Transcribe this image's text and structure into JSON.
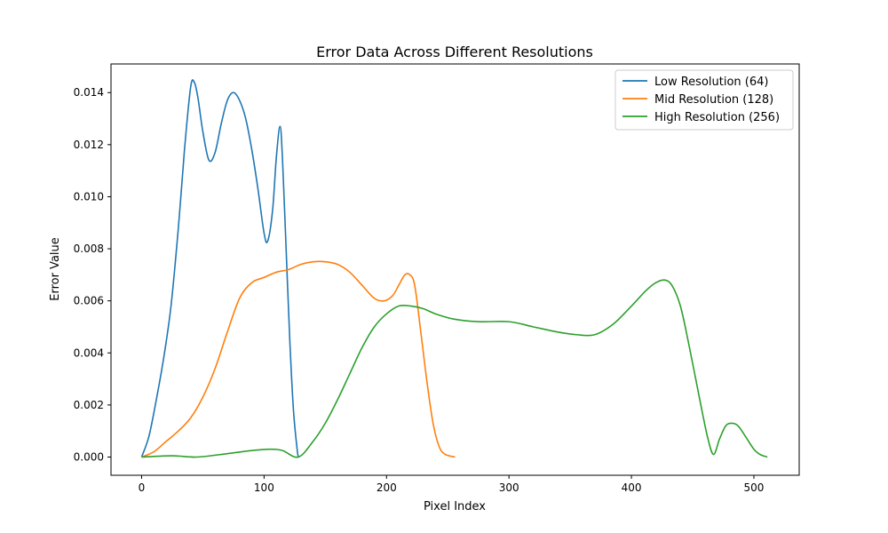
{
  "chart_data": {
    "type": "line",
    "title": "Error Data Across Different Resolutions",
    "xlabel": "Pixel Index",
    "ylabel": "Error Value",
    "xlim": [
      -25,
      537
    ],
    "ylim": [
      -0.0007,
      0.0151
    ],
    "xticks": [
      0,
      100,
      200,
      300,
      400,
      500
    ],
    "xtick_labels": [
      "0",
      "100",
      "200",
      "300",
      "400",
      "500"
    ],
    "yticks": [
      0.0,
      0.002,
      0.004,
      0.006,
      0.008,
      0.01,
      0.012,
      0.014
    ],
    "ytick_labels": [
      "0.000",
      "0.002",
      "0.004",
      "0.006",
      "0.008",
      "0.010",
      "0.012",
      "0.014"
    ],
    "grid": false,
    "legend_position": "top-right",
    "series": [
      {
        "name": "Low Resolution (64)",
        "color": "#1f77b4",
        "points": [
          [
            0,
            0.0
          ],
          [
            6,
            0.0008
          ],
          [
            12,
            0.0022
          ],
          [
            18,
            0.0038
          ],
          [
            24,
            0.0058
          ],
          [
            30,
            0.0088
          ],
          [
            35,
            0.0118
          ],
          [
            40,
            0.0142
          ],
          [
            43,
            0.0144
          ],
          [
            46,
            0.0138
          ],
          [
            50,
            0.0125
          ],
          [
            55,
            0.0114
          ],
          [
            60,
            0.0117
          ],
          [
            65,
            0.0128
          ],
          [
            70,
            0.0137
          ],
          [
            75,
            0.014
          ],
          [
            80,
            0.0137
          ],
          [
            85,
            0.013
          ],
          [
            90,
            0.0118
          ],
          [
            95,
            0.0103
          ],
          [
            100,
            0.0086
          ],
          [
            103,
            0.0083
          ],
          [
            107,
            0.0095
          ],
          [
            110,
            0.0115
          ],
          [
            113,
            0.0127
          ],
          [
            115,
            0.0115
          ],
          [
            118,
            0.008
          ],
          [
            121,
            0.0045
          ],
          [
            124,
            0.0018
          ],
          [
            127,
            0.0003
          ],
          [
            128,
            0.0
          ]
        ]
      },
      {
        "name": "Mid Resolution (128)",
        "color": "#ff7f0e",
        "points": [
          [
            0,
            0.0
          ],
          [
            10,
            0.0002
          ],
          [
            20,
            0.0006
          ],
          [
            30,
            0.001
          ],
          [
            40,
            0.0015
          ],
          [
            50,
            0.0023
          ],
          [
            60,
            0.0034
          ],
          [
            70,
            0.0048
          ],
          [
            80,
            0.0061
          ],
          [
            90,
            0.0067
          ],
          [
            100,
            0.0069
          ],
          [
            110,
            0.0071
          ],
          [
            120,
            0.0072
          ],
          [
            130,
            0.0074
          ],
          [
            140,
            0.0075
          ],
          [
            150,
            0.0075
          ],
          [
            160,
            0.0074
          ],
          [
            170,
            0.0071
          ],
          [
            180,
            0.0066
          ],
          [
            190,
            0.0061
          ],
          [
            198,
            0.006
          ],
          [
            205,
            0.0062
          ],
          [
            210,
            0.0066
          ],
          [
            215,
            0.007
          ],
          [
            219,
            0.007
          ],
          [
            223,
            0.0066
          ],
          [
            228,
            0.0048
          ],
          [
            233,
            0.0029
          ],
          [
            238,
            0.0013
          ],
          [
            243,
            0.0004
          ],
          [
            248,
            0.0001
          ],
          [
            256,
            0.0
          ]
        ]
      },
      {
        "name": "High Resolution (256)",
        "color": "#2ca02c",
        "points": [
          [
            0,
            0.0
          ],
          [
            25,
            5e-05
          ],
          [
            45,
            0.0
          ],
          [
            70,
            0.00013
          ],
          [
            90,
            0.00025
          ],
          [
            105,
            0.0003
          ],
          [
            115,
            0.00025
          ],
          [
            128,
            0.0
          ],
          [
            140,
            0.0006
          ],
          [
            150,
            0.0013
          ],
          [
            160,
            0.0022
          ],
          [
            170,
            0.0032
          ],
          [
            180,
            0.0042
          ],
          [
            190,
            0.005
          ],
          [
            200,
            0.0055
          ],
          [
            210,
            0.0058
          ],
          [
            220,
            0.0058
          ],
          [
            230,
            0.0057
          ],
          [
            240,
            0.0055
          ],
          [
            255,
            0.0053
          ],
          [
            275,
            0.0052
          ],
          [
            300,
            0.0052
          ],
          [
            320,
            0.005
          ],
          [
            340,
            0.0048
          ],
          [
            355,
            0.0047
          ],
          [
            370,
            0.0047
          ],
          [
            385,
            0.0051
          ],
          [
            400,
            0.0058
          ],
          [
            412,
            0.0064
          ],
          [
            420,
            0.0067
          ],
          [
            427,
            0.0068
          ],
          [
            433,
            0.0066
          ],
          [
            440,
            0.0058
          ],
          [
            447,
            0.0043
          ],
          [
            455,
            0.0024
          ],
          [
            462,
            0.0008
          ],
          [
            467,
            0.0001
          ],
          [
            472,
            0.0007
          ],
          [
            477,
            0.0012
          ],
          [
            482,
            0.0013
          ],
          [
            487,
            0.0012
          ],
          [
            493,
            0.0008
          ],
          [
            500,
            0.0003
          ],
          [
            505,
            0.0001
          ],
          [
            511,
            0.0
          ]
        ]
      }
    ]
  }
}
